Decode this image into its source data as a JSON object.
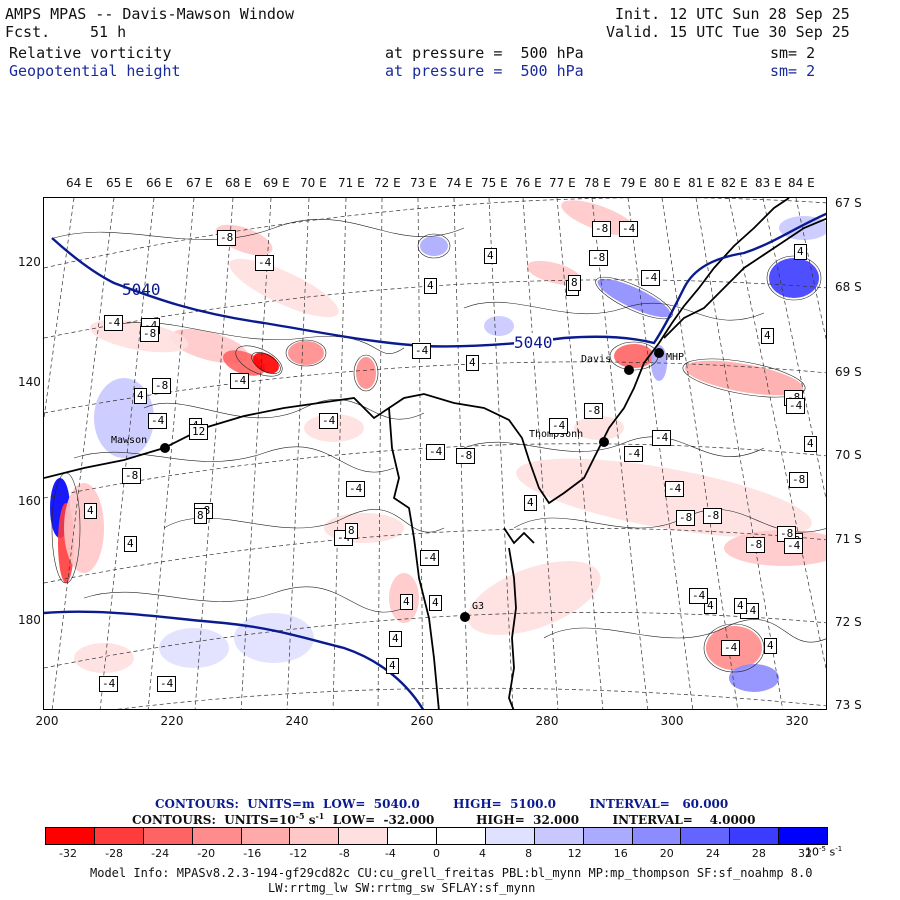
{
  "header": {
    "title": "AMPS MPAS -- Davis-Mawson Window",
    "fcst_label": "Fcst.",
    "fcst_value": "51 h",
    "init": "Init. 12 UTC Sun 28 Sep 25",
    "valid": "Valid. 15 UTC Tue 30 Sep 25"
  },
  "fields": [
    {
      "name": "Relative vorticity",
      "pressure": "at pressure =  500 hPa",
      "smooth": "sm= 2",
      "color": "#111111"
    },
    {
      "name": "Geopotential height",
      "pressure": "at pressure =  500 hPa",
      "smooth": "sm= 2",
      "color": "#1a2a9c"
    }
  ],
  "map": {
    "lon_labels": [
      "64 E",
      "65 E",
      "66 E",
      "67 E",
      "68 E",
      "69 E",
      "70 E",
      "71 E",
      "72 E",
      "73 E",
      "74 E",
      "75 E",
      "76 E",
      "77 E",
      "78 E",
      "79 E",
      "80 E",
      "81 E",
      "82 E",
      "83 E",
      "84 E"
    ],
    "lat_labels": [
      "67 S",
      "68 S",
      "69 S",
      "70 S",
      "71 S",
      "72 S",
      "73 S"
    ],
    "x_ticks": [
      "200",
      "220",
      "240",
      "260",
      "280",
      "300",
      "320"
    ],
    "y_ticks": [
      "120",
      "140",
      "160",
      "180"
    ],
    "height_labels": [
      "5040",
      "5040"
    ],
    "stations": [
      "Davis",
      "Mawson",
      "Thompsonh",
      "G3",
      "MHP"
    ],
    "vort_labels": [
      "-8",
      "-4",
      "4",
      "-4",
      "4",
      "8",
      "-8",
      "-4",
      "-4",
      "4",
      "-4",
      "8",
      "-8",
      "-4",
      "-4",
      "-8",
      "-8",
      "-4",
      "4",
      "-4",
      "-8",
      "4",
      "-8",
      "4",
      "-4",
      "-8",
      "-4",
      "4",
      "-4",
      "-4",
      "-8",
      "4",
      "4",
      "-4",
      "-8",
      "-4",
      "8",
      "12",
      "8",
      "-4",
      "4",
      "4",
      "-4",
      "4",
      "4",
      "-4",
      "-8",
      "4",
      "-4",
      "-8",
      "-8",
      "-8",
      "-4",
      "4",
      "-8",
      "4",
      "4",
      "-4",
      "-8",
      "-4",
      "4",
      "-4",
      "-4"
    ]
  },
  "footer": {
    "contour1": "CONTOURS:  UNITS=m  LOW=  5040.0        HIGH=  5100.0        INTERVAL=   60.000",
    "contour2_pre": "CONTOURS:  UNITS=10",
    "contour2_exp": "-5",
    "contour2_mid": " s",
    "contour2_exp2": "-1",
    "contour2_post": "  LOW=  -32.000          HIGH=  32.000        INTERVAL=    4.0000",
    "colorbar_labels": [
      "-32",
      "-28",
      "-24",
      "-20",
      "-16",
      "-12",
      "-8",
      "-4",
      "0",
      "4",
      "8",
      "12",
      "16",
      "20",
      "24",
      "28",
      "32"
    ],
    "colorbar_units_base": "10",
    "colorbar_units_exp": "-5",
    "colorbar_units_s": "s",
    "colorbar_units_exp2": "-1",
    "colorbar_colors": [
      "#ff0000",
      "#ff3c3c",
      "#ff6464",
      "#ff8c8c",
      "#ffaaaa",
      "#ffc8c8",
      "#ffe0e0",
      "#ffffff",
      "#ffffff",
      "#e0e0ff",
      "#c8c8ff",
      "#aaaaff",
      "#8c8cff",
      "#6464ff",
      "#3c3cff",
      "#0000ff"
    ],
    "model_info_1": "Model Info: MPASv8.2.3-194-gf29cd82c CU:cu_grell_freitas PBL:bl_mynn MP:mp_thompson SF:sf_noahmp 8.0",
    "model_info_2": "LW:rrtmg_lw SW:rrtmg_sw SFLAY:sf_mynn"
  }
}
